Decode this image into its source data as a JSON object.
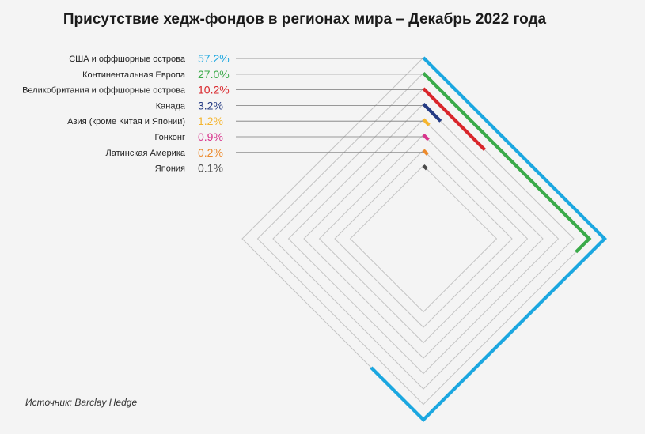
{
  "chart_data": {
    "type": "radial-bar",
    "title": "Присутствие хедж-фондов в регионах мира – Декабрь 2022 года",
    "unit": "%",
    "max_percent": 100,
    "grid": true,
    "categories": [
      "США и оффшорные острова",
      "Континентальная Европа",
      "Великобритания и оффшорные острова",
      "Канада",
      "Азия (кроме Китая и Японии)",
      "Гонконг",
      "Латинская Америка",
      "Япония"
    ],
    "values": [
      57.2,
      27.0,
      10.2,
      3.2,
      1.2,
      0.9,
      0.2,
      0.1
    ],
    "labels": [
      "57.2%",
      "27.0%",
      "10.2%",
      "3.2%",
      "1.2%",
      "0.9%",
      "0.2%",
      "0.1%"
    ],
    "colors": [
      "#1ba7e0",
      "#3aaa49",
      "#d9262b",
      "#243a83",
      "#f5b52e",
      "#d8348c",
      "#ec8a2c",
      "#4a4a4a"
    ]
  },
  "source": "Источник: Barclay Hedge"
}
